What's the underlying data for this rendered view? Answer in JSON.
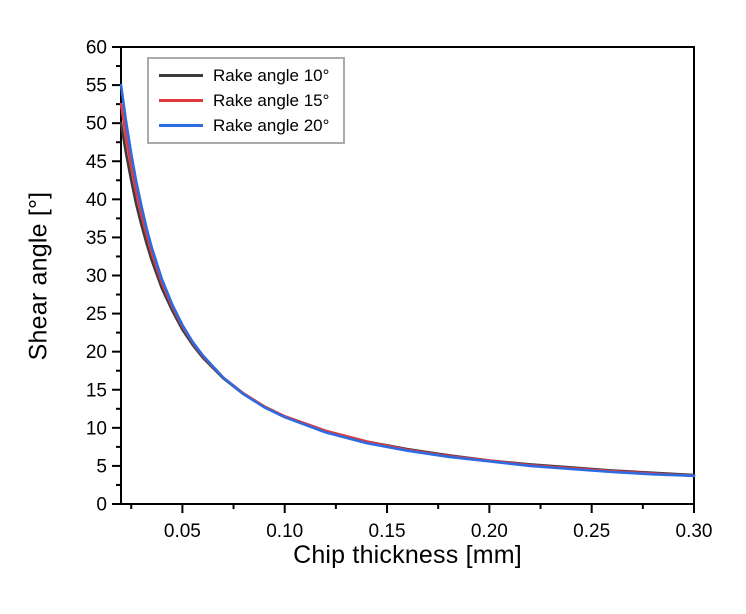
{
  "figure": {
    "background": "#ffffff",
    "text_color": "#000000",
    "axis_color": "#000000",
    "legend_border_color": "#ababab"
  },
  "chart_data": {
    "type": "line",
    "title": "",
    "xlabel": "Chip thickness [mm]",
    "ylabel": "Shear angle [°]",
    "xlim": [
      0.02,
      0.3
    ],
    "ylim": [
      0,
      60
    ],
    "grid": false,
    "legend_position": "top-left",
    "x_major_ticks": {
      "values": [
        0.05,
        0.1,
        0.15,
        0.2,
        0.25,
        0.3
      ],
      "labels": [
        "0.05",
        "0.10",
        "0.15",
        "0.20",
        "0.25",
        "0.30"
      ]
    },
    "x_minor_ticks": [
      0.025,
      0.075,
      0.125,
      0.175,
      0.225,
      0.275
    ],
    "y_major_ticks": {
      "values": [
        0,
        5,
        10,
        15,
        20,
        25,
        30,
        35,
        40,
        45,
        50,
        55,
        60
      ],
      "labels": [
        "0",
        "5",
        "10",
        "15",
        "20",
        "25",
        "30",
        "35",
        "40",
        "45",
        "50",
        "55",
        "60"
      ]
    },
    "y_minor_ticks": [
      2.5,
      7.5,
      12.5,
      17.5,
      22.5,
      27.5,
      32.5,
      37.5,
      42.5,
      47.5,
      52.5,
      57.5
    ],
    "x": [
      0.02,
      0.0225,
      0.025,
      0.0275,
      0.03,
      0.0325,
      0.035,
      0.04,
      0.045,
      0.05,
      0.055,
      0.06,
      0.07,
      0.08,
      0.09,
      0.1,
      0.12,
      0.14,
      0.16,
      0.18,
      0.2,
      0.22,
      0.24,
      0.26,
      0.28,
      0.3
    ],
    "series": [
      {
        "name": "Rake angle 10°",
        "color": "#3c3c3c",
        "values": [
          50.0,
          46.0,
          42.5,
          39.3,
          36.6,
          34.2,
          32.0,
          28.3,
          25.4,
          22.9,
          20.9,
          19.2,
          16.5,
          14.4,
          12.8,
          11.5,
          9.6,
          8.2,
          7.2,
          6.4,
          5.7,
          5.2,
          4.8,
          4.4,
          4.1,
          3.8
        ]
      },
      {
        "name": "Rake angle 15°",
        "color": "#e0393e",
        "values": [
          52.5,
          48.1,
          44.3,
          40.9,
          37.9,
          35.3,
          32.9,
          29.0,
          25.9,
          23.3,
          21.2,
          19.4,
          16.6,
          14.5,
          12.8,
          11.5,
          9.6,
          8.2,
          7.1,
          6.3,
          5.7,
          5.1,
          4.7,
          4.3,
          4.0,
          3.7
        ]
      },
      {
        "name": "Rake angle 20°",
        "color": "#2e6be0",
        "values": [
          55.0,
          50.2,
          46.0,
          42.3,
          39.1,
          36.2,
          33.7,
          29.5,
          26.2,
          23.5,
          21.3,
          19.5,
          16.6,
          14.4,
          12.7,
          11.4,
          9.4,
          8.0,
          7.0,
          6.2,
          5.6,
          5.0,
          4.6,
          4.2,
          3.9,
          3.7
        ]
      }
    ]
  }
}
